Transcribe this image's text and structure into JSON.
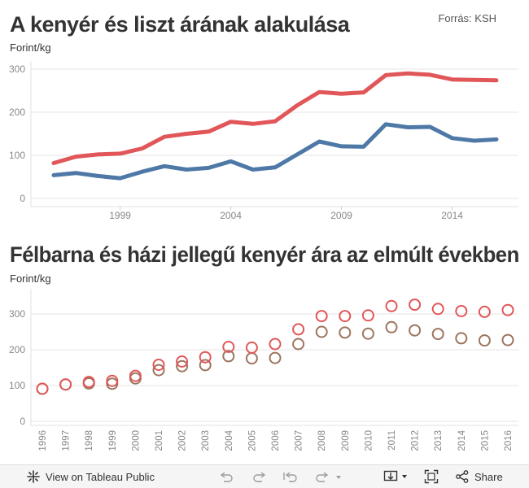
{
  "header": {
    "title": "A kenyér és liszt árának alakulása",
    "unit": "Forint/kg",
    "source": "Forrás: KSH"
  },
  "section2": {
    "title": "Félbarna és házi jellegű kenyér ára az elmúlt években",
    "unit": "Forint/kg"
  },
  "chart_data": [
    {
      "type": "line",
      "title": "A kenyér és liszt árának alakulása",
      "ylabel": "Forint/kg",
      "ylim": [
        0,
        300
      ],
      "yticks": [
        "0",
        "100",
        "200",
        "300"
      ],
      "xticks": [
        "1999",
        "2004",
        "2009",
        "2014"
      ],
      "x": [
        1996,
        1997,
        1998,
        1999,
        2000,
        2001,
        2002,
        2003,
        2004,
        2005,
        2006,
        2007,
        2008,
        2009,
        2010,
        2011,
        2012,
        2013,
        2014,
        2015,
        2016
      ],
      "series": [
        {
          "name": "red",
          "color": "#e15759",
          "values": [
            82,
            97,
            102,
            104,
            116,
            143,
            150,
            155,
            178,
            173,
            179,
            216,
            247,
            243,
            246,
            286,
            290,
            287,
            276,
            275,
            274
          ]
        },
        {
          "name": "blue",
          "color": "#4e79a7",
          "values": [
            54,
            59,
            52,
            47,
            62,
            75,
            67,
            71,
            86,
            67,
            72,
            102,
            132,
            121,
            120,
            172,
            165,
            166,
            140,
            134,
            137
          ]
        }
      ],
      "grid": true
    },
    {
      "type": "scatter",
      "title": "Félbarna és házi jellegű kenyér ára az elmúlt években",
      "ylabel": "Forint/kg",
      "ylim": [
        0,
        340
      ],
      "yticks": [
        "0",
        "100",
        "200",
        "300"
      ],
      "x": [
        "1996",
        "1997",
        "1998",
        "1999",
        "2000",
        "2001",
        "2002",
        "2003",
        "2004",
        "2005",
        "2006",
        "2007",
        "2008",
        "2009",
        "2010",
        "2011",
        "2012",
        "2013",
        "2014",
        "2015",
        "2016"
      ],
      "series": [
        {
          "name": "red",
          "color": "#e15759",
          "values": [
            91,
            103,
            110,
            113,
            127,
            158,
            167,
            179,
            208,
            206,
            216,
            257,
            294,
            294,
            296,
            322,
            326,
            314,
            308,
            306,
            311
          ]
        },
        {
          "name": "brown",
          "color": "#9c755f",
          "values": [
            91,
            103,
            106,
            105,
            120,
            143,
            154,
            157,
            182,
            176,
            177,
            216,
            250,
            248,
            245,
            263,
            254,
            244,
            232,
            226,
            227
          ]
        }
      ],
      "grid": true
    }
  ],
  "toolbar": {
    "view_label": "View on Tableau Public",
    "share_label": "Share"
  }
}
